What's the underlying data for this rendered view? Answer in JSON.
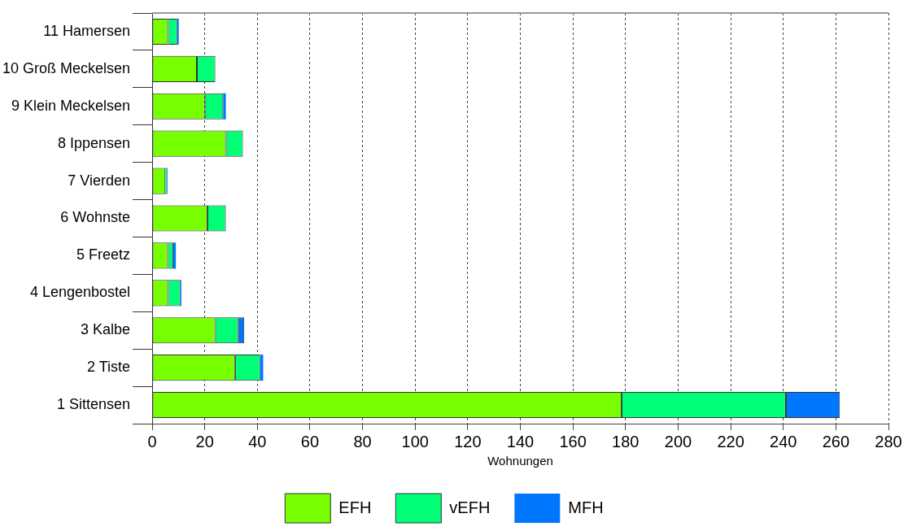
{
  "chart_data": {
    "type": "bar",
    "orientation": "horizontal",
    "stacked": true,
    "xlabel": "Wohnungen",
    "categories": [
      "11 Hamersen",
      "10 Groß Meckelsen",
      "9 Klein Meckelsen",
      "8 Ippensen",
      "7 Vierden",
      "6 Wohnste",
      "5 Freetz",
      "4 Lengenbostel",
      "3 Kalbe",
      "2 Tiste",
      "1 Sittensen"
    ],
    "series": [
      {
        "name": "EFH",
        "color": "#77ff00",
        "values": [
          6,
          17,
          20,
          28,
          5,
          21,
          6,
          6,
          24,
          31.5,
          178.5
        ]
      },
      {
        "name": "vEFH",
        "color": "#00ff77",
        "values": [
          3.5,
          7,
          7,
          6.5,
          0.4,
          7,
          2,
          4.7,
          8.7,
          9.5,
          62.5
        ]
      },
      {
        "name": "MFH",
        "color": "#0077ff",
        "values": [
          0.6,
          0,
          1,
          0,
          0.4,
          0,
          1,
          0.4,
          2.3,
          1.2,
          20.5
        ]
      }
    ],
    "xlim": [
      0,
      280
    ],
    "xticks": [
      0,
      20,
      40,
      60,
      80,
      100,
      120,
      140,
      160,
      180,
      200,
      220,
      240,
      260,
      280
    ],
    "grid": "x",
    "legend": "bottom"
  }
}
